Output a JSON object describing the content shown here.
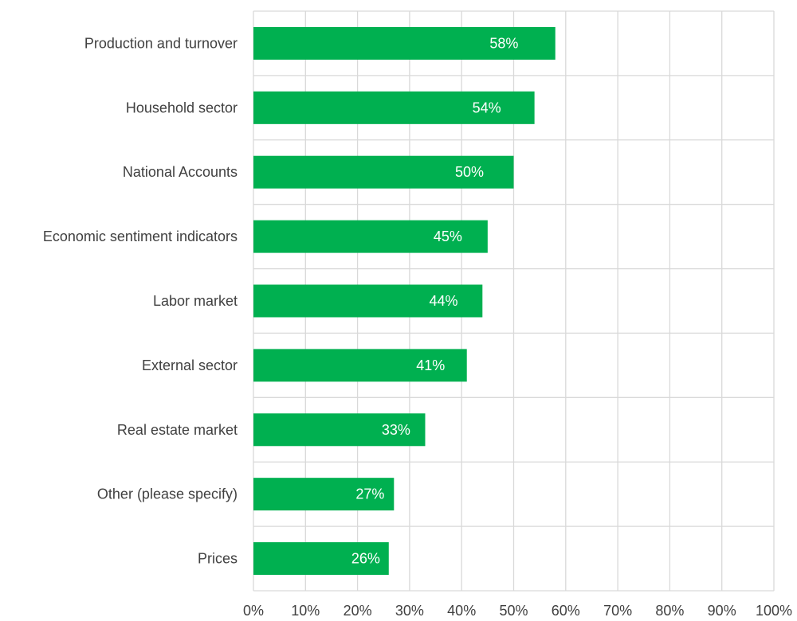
{
  "chart_data": {
    "type": "bar",
    "orientation": "horizontal",
    "title": "",
    "xlabel": "",
    "ylabel": "",
    "categories": [
      "Production and turnover",
      "Household sector",
      "National Accounts",
      "Economic sentiment indicators",
      "Labor market",
      "External sector",
      "Real estate market",
      "Other (please specify)",
      "Prices"
    ],
    "values": [
      58,
      54,
      50,
      45,
      44,
      41,
      33,
      27,
      26
    ],
    "data_labels": [
      "58%",
      "54%",
      "50%",
      "45%",
      "44%",
      "41%",
      "33%",
      "27%",
      "26%"
    ],
    "xlim": [
      0,
      100
    ],
    "x_ticks": [
      "0%",
      "10%",
      "20%",
      "30%",
      "40%",
      "50%",
      "60%",
      "70%",
      "80%",
      "90%",
      "100%"
    ],
    "grid": true,
    "legend": "none",
    "bar_color": "#00b050",
    "grid_color": "#d9d9d9"
  }
}
